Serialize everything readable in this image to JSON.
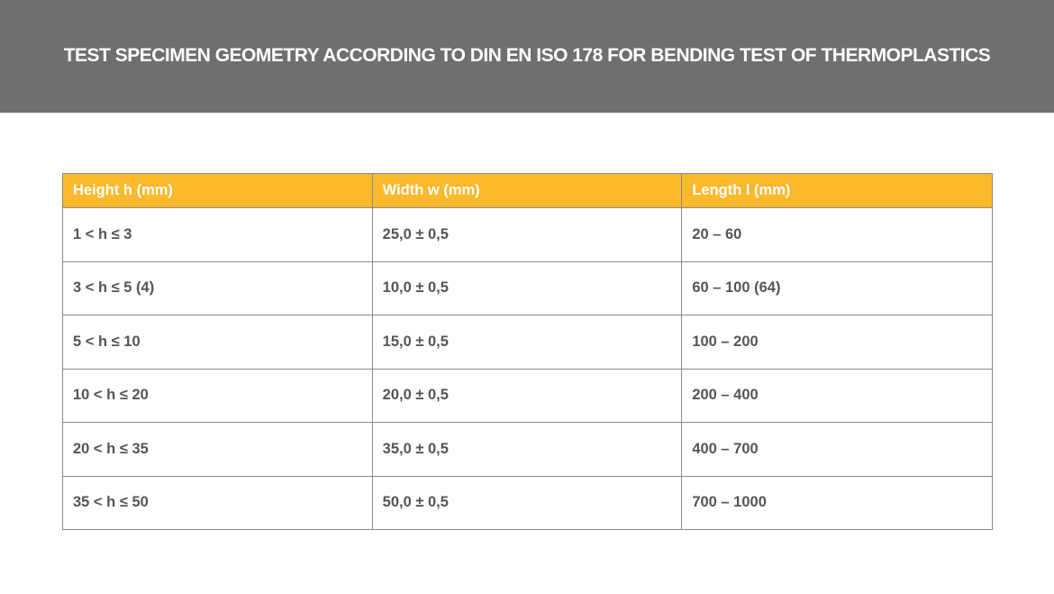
{
  "title": "TEST SPECIMEN GEOMETRY ACCORDING TO DIN EN ISO 178 FOR BENDING TEST OF THERMOPLASTICS",
  "colors": {
    "banner": "#6f6f6f",
    "header": "#fbb92c",
    "text": "#555555"
  },
  "table": {
    "headers": [
      "Height h (mm)",
      "Width w (mm)",
      "Length l (mm)"
    ],
    "rows": [
      [
        "1 < h ≤ 3",
        "25,0 ± 0,5",
        "20 – 60"
      ],
      [
        "3 < h ≤ 5 (4)",
        "10,0 ± 0,5",
        "60 – 100 (64)"
      ],
      [
        "5 < h ≤ 10",
        "15,0 ± 0,5",
        "100 – 200"
      ],
      [
        "10 < h ≤ 20",
        "20,0 ± 0,5",
        "200 – 400"
      ],
      [
        "20 < h ≤ 35",
        "35,0 ± 0,5",
        "400 – 700"
      ],
      [
        "35 < h ≤ 50",
        "50,0 ± 0,5",
        "700 – 1000"
      ]
    ]
  }
}
